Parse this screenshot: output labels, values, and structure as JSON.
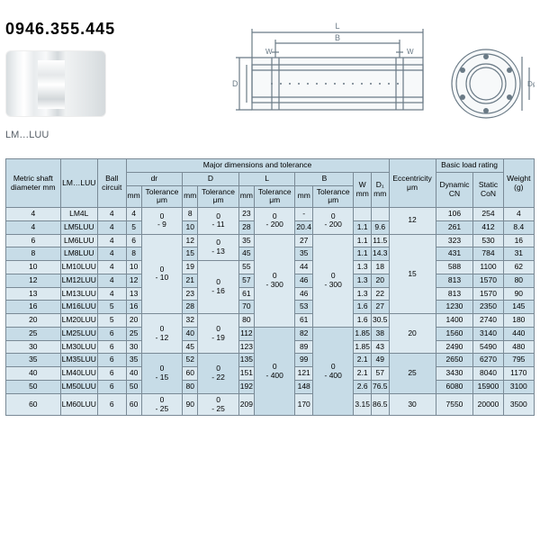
{
  "phone": "0946.355.445",
  "series_label": "LM…LUU",
  "diagram": {
    "stroke": "#6a7a86",
    "labels": {
      "L": "L",
      "B": "B",
      "W": "W",
      "D": "D",
      "D1": "D₁",
      "dr": "dr"
    }
  },
  "table": {
    "bg_header": "#c7dce7",
    "bg_row_a": "#dce9f0",
    "bg_row_b": "#c7dce7",
    "border": "#7a8a96",
    "headers": {
      "metric": "Metric shaft diameter mm",
      "model": "LM…LUU",
      "ball": "Ball circuit",
      "major": "Major dimensions and tolerance",
      "ecc": "Eccentricity μm",
      "load": "Basic load rating",
      "weight": "Weight (g)",
      "dr": "dr",
      "D": "D",
      "L": "L",
      "B": "B",
      "W": "W",
      "D1": "D₁",
      "mm": "mm",
      "tol": "Tolerance μm",
      "dyn": "Dynamic CN",
      "stat": "Static CoN"
    },
    "tol_dr": [
      "0 - 9",
      "0 - 10",
      "0 - 12",
      "0 - 15",
      "0 - 25"
    ],
    "tol_D": [
      "0 - 11",
      "0 - 13",
      "0 - 16",
      "0 - 19",
      "0 - 22",
      "0 - 25"
    ],
    "tol_L": [
      "0 - 200",
      "0 - 300",
      "0 - 400"
    ],
    "tol_B": [
      "0 - 200",
      "0 - 300",
      "0 - 400"
    ],
    "ecc_vals": [
      "12",
      "15",
      "20",
      "25",
      "30"
    ],
    "rows": [
      {
        "d": "4",
        "m": "LM4L",
        "b": "4",
        "dr": "4",
        "D": "8",
        "L": "23",
        "B": "",
        "W": "",
        "D1": "",
        "dyn": "106",
        "st": "254",
        "wt": "4"
      },
      {
        "d": "4",
        "m": "LM5LUU",
        "b": "4",
        "dr": "5",
        "D": "10",
        "L": "28",
        "B": "20.4",
        "W": "1.1",
        "D1": "9.6",
        "dyn": "261",
        "st": "412",
        "wt": "8.4"
      },
      {
        "d": "6",
        "m": "LM6LUU",
        "b": "4",
        "dr": "6",
        "D": "12",
        "L": "35",
        "B": "27",
        "W": "1.1",
        "D1": "11.5",
        "dyn": "323",
        "st": "530",
        "wt": "16"
      },
      {
        "d": "8",
        "m": "LM8LUU",
        "b": "4",
        "dr": "8",
        "D": "15",
        "L": "45",
        "B": "35",
        "W": "1.1",
        "D1": "14.3",
        "dyn": "431",
        "st": "784",
        "wt": "31"
      },
      {
        "d": "10",
        "m": "LM10LUU",
        "b": "4",
        "dr": "10",
        "D": "19",
        "L": "55",
        "B": "44",
        "W": "1.3",
        "D1": "18",
        "dyn": "588",
        "st": "1100",
        "wt": "62"
      },
      {
        "d": "12",
        "m": "LM12LUU",
        "b": "4",
        "dr": "12",
        "D": "21",
        "L": "57",
        "B": "46",
        "W": "1.3",
        "D1": "20",
        "dyn": "813",
        "st": "1570",
        "wt": "80"
      },
      {
        "d": "13",
        "m": "LM13LUU",
        "b": "4",
        "dr": "13",
        "D": "23",
        "L": "61",
        "B": "46",
        "W": "1.3",
        "D1": "22",
        "dyn": "813",
        "st": "1570",
        "wt": "90"
      },
      {
        "d": "16",
        "m": "LM16LUU",
        "b": "5",
        "dr": "16",
        "D": "28",
        "L": "70",
        "B": "53",
        "W": "1.6",
        "D1": "27",
        "dyn": "1230",
        "st": "2350",
        "wt": "145"
      },
      {
        "d": "20",
        "m": "LM20LUU",
        "b": "5",
        "dr": "20",
        "D": "32",
        "L": "80",
        "B": "61",
        "W": "1.6",
        "D1": "30.5",
        "dyn": "1400",
        "st": "2740",
        "wt": "180"
      },
      {
        "d": "25",
        "m": "LM25LUU",
        "b": "6",
        "dr": "25",
        "D": "40",
        "L": "112",
        "B": "82",
        "W": "1.85",
        "D1": "38",
        "dyn": "1560",
        "st": "3140",
        "wt": "440"
      },
      {
        "d": "30",
        "m": "LM30LUU",
        "b": "6",
        "dr": "30",
        "D": "45",
        "L": "123",
        "B": "89",
        "W": "1.85",
        "D1": "43",
        "dyn": "2490",
        "st": "5490",
        "wt": "480"
      },
      {
        "d": "35",
        "m": "LM35LUU",
        "b": "6",
        "dr": "35",
        "D": "52",
        "L": "135",
        "B": "99",
        "W": "2.1",
        "D1": "49",
        "dyn": "2650",
        "st": "6270",
        "wt": "795"
      },
      {
        "d": "40",
        "m": "LM40LUU",
        "b": "6",
        "dr": "40",
        "D": "60",
        "L": "151",
        "B": "121",
        "W": "2.1",
        "D1": "57",
        "dyn": "3430",
        "st": "8040",
        "wt": "1170"
      },
      {
        "d": "50",
        "m": "LM50LUU",
        "b": "6",
        "dr": "50",
        "D": "80",
        "L": "192",
        "B": "148",
        "W": "2.6",
        "D1": "76.5",
        "dyn": "6080",
        "st": "15900",
        "wt": "3100"
      },
      {
        "d": "60",
        "m": "LM60LUU",
        "b": "6",
        "dr": "60",
        "D": "90",
        "L": "209",
        "B": "170",
        "W": "3.15",
        "D1": "86.5",
        "dyn": "7550",
        "st": "20000",
        "wt": "3500"
      }
    ]
  }
}
